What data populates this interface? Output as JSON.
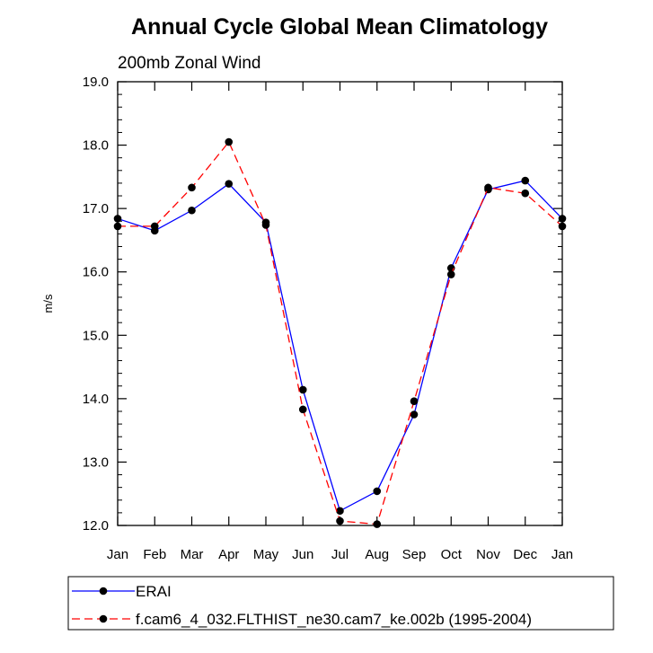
{
  "chart_data": {
    "type": "line",
    "title": "Annual Cycle Global Mean Climatology",
    "subtitle": "200mb Zonal Wind",
    "ylabel": "m/s",
    "xlabel": "",
    "categories": [
      "Jan",
      "Feb",
      "Mar",
      "Apr",
      "May",
      "Jun",
      "Jul",
      "Aug",
      "Sep",
      "Oct",
      "Nov",
      "Dec",
      "Jan"
    ],
    "ylim": [
      12.0,
      19.0
    ],
    "yticks": [
      "12.0",
      "13.0",
      "14.0",
      "15.0",
      "16.0",
      "17.0",
      "18.0",
      "19.0"
    ],
    "grid": false,
    "legend_position": "bottom",
    "series": [
      {
        "name": "ERAI",
        "color": "#0000ff",
        "line_style": "solid",
        "values": [
          16.84,
          16.65,
          16.97,
          17.39,
          16.78,
          14.14,
          12.23,
          12.54,
          13.75,
          16.06,
          17.3,
          17.44,
          16.84
        ]
      },
      {
        "name": "f.cam6_4_032.FLTHIST_ne30.cam7_ke.002b (1995-2004)",
        "color": "#ff0000",
        "line_style": "dashed",
        "values": [
          16.72,
          16.72,
          17.33,
          18.05,
          16.74,
          13.83,
          12.07,
          12.02,
          13.96,
          15.96,
          17.33,
          17.24,
          16.72
        ]
      }
    ]
  }
}
